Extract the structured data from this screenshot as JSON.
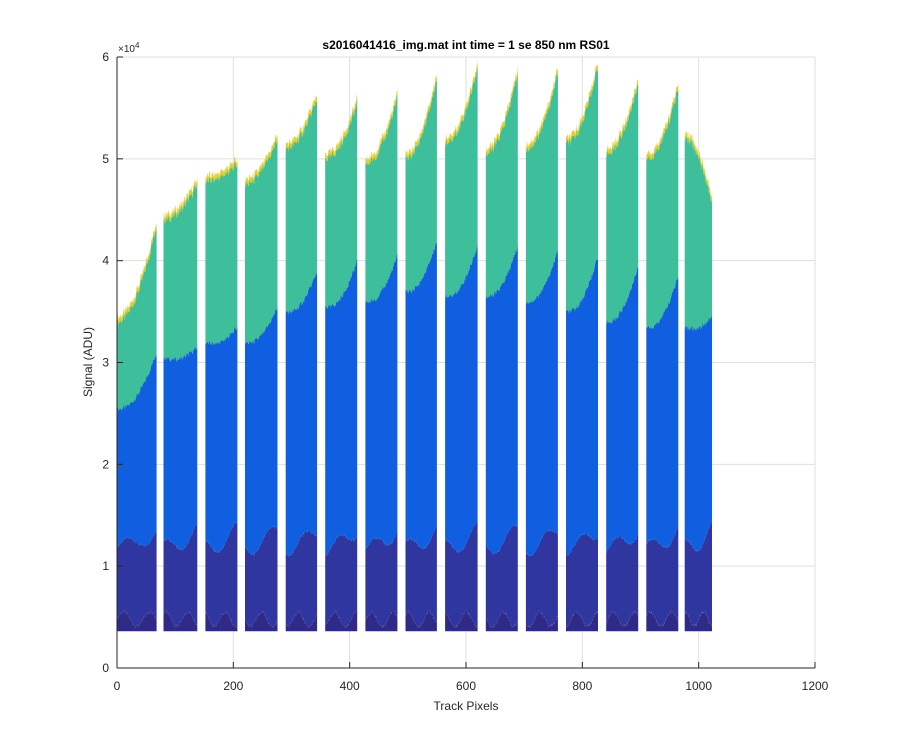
{
  "chart_data": {
    "type": "area",
    "title": "s2016041416_img.mat int time = 1 se  850 nm RS01",
    "xlabel": "Track Pixels",
    "ylabel": "Signal (ADU)",
    "xlim": [
      0,
      1200
    ],
    "ylim": [
      0,
      60000
    ],
    "y_exponent_label": "×10",
    "y_exponent_power": "4",
    "x_ticks": [
      0,
      200,
      400,
      600,
      800,
      1000,
      1200
    ],
    "x_tick_labels": [
      "0",
      "200",
      "400",
      "600",
      "800",
      "1000",
      "1200"
    ],
    "y_ticks": [
      0,
      10000,
      20000,
      30000,
      40000,
      50000,
      60000
    ],
    "y_tick_labels": [
      "0",
      "1",
      "2",
      "3",
      "4",
      "5",
      "6"
    ],
    "grid": true,
    "legend": "none",
    "colors": {
      "top": "#e6d21e",
      "upper": "#3cbf9a",
      "mid": "#0f5fe0",
      "low": "#3036a0",
      "base": "#2e2a86"
    },
    "baseline": 3600,
    "tracks": [
      {
        "x0": 0,
        "x1": 68,
        "peak_start": 34000,
        "peak_end": 43500,
        "mid_start": 25500,
        "mid_end": 31000
      },
      {
        "x0": 80,
        "x1": 138,
        "peak_start": 44000,
        "peak_end": 47500,
        "mid_start": 30500,
        "mid_end": 31500
      },
      {
        "x0": 152,
        "x1": 207,
        "peak_start": 47800,
        "peak_end": 49500,
        "mid_start": 32000,
        "mid_end": 33500
      },
      {
        "x0": 220,
        "x1": 276,
        "peak_start": 47500,
        "peak_end": 52000,
        "mid_start": 32000,
        "mid_end": 35500
      },
      {
        "x0": 290,
        "x1": 344,
        "peak_start": 51000,
        "peak_end": 56000,
        "mid_start": 35000,
        "mid_end": 39000
      },
      {
        "x0": 358,
        "x1": 413,
        "peak_start": 50000,
        "peak_end": 55500,
        "mid_start": 35500,
        "mid_end": 40000
      },
      {
        "x0": 427,
        "x1": 482,
        "peak_start": 49500,
        "peak_end": 56000,
        "mid_start": 36000,
        "mid_end": 40500
      },
      {
        "x0": 496,
        "x1": 550,
        "peak_start": 50000,
        "peak_end": 58000,
        "mid_start": 37000,
        "mid_end": 42000
      },
      {
        "x0": 564,
        "x1": 620,
        "peak_start": 51500,
        "peak_end": 59000,
        "mid_start": 36500,
        "mid_end": 41500
      },
      {
        "x0": 634,
        "x1": 689,
        "peak_start": 50500,
        "peak_end": 58500,
        "mid_start": 36500,
        "mid_end": 41500
      },
      {
        "x0": 703,
        "x1": 758,
        "peak_start": 51000,
        "peak_end": 58500,
        "mid_start": 36000,
        "mid_end": 41000
      },
      {
        "x0": 772,
        "x1": 827,
        "peak_start": 51500,
        "peak_end": 59200,
        "mid_start": 35000,
        "mid_end": 40500
      },
      {
        "x0": 841,
        "x1": 896,
        "peak_start": 50500,
        "peak_end": 57500,
        "mid_start": 34000,
        "mid_end": 39500
      },
      {
        "x0": 910,
        "x1": 965,
        "peak_start": 50000,
        "peak_end": 57000,
        "mid_start": 33500,
        "mid_end": 38500
      },
      {
        "x0": 976,
        "x1": 1023,
        "peak_start": 52000,
        "peak_end": 45500,
        "mid_start": 33500,
        "mid_end": 34500
      }
    ]
  }
}
